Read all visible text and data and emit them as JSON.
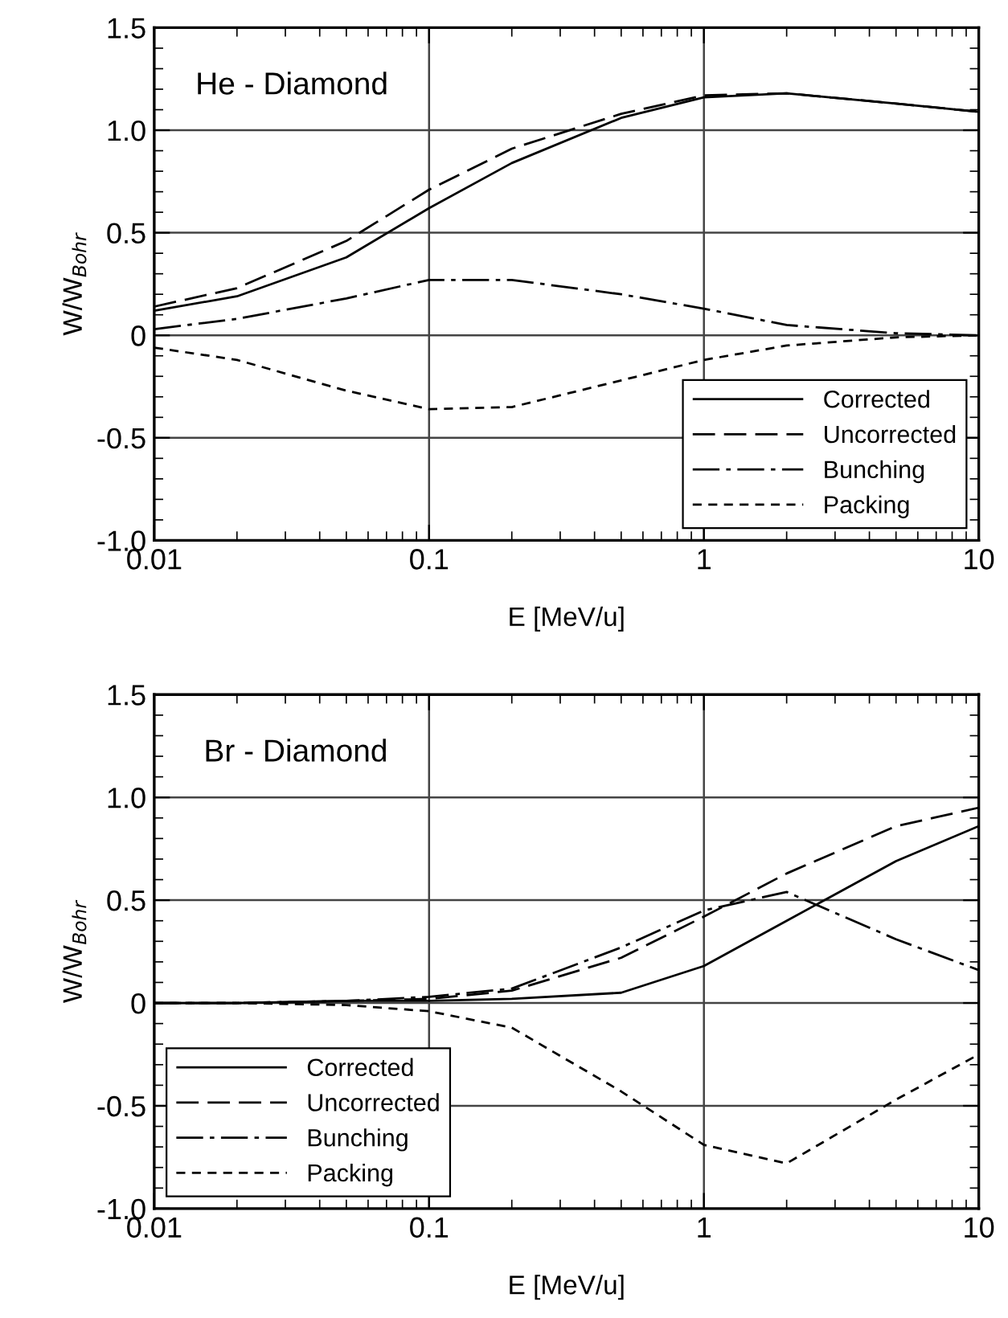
{
  "chart_data": [
    {
      "type": "line",
      "annotations": [
        "He - Diamond"
      ],
      "xlabel": "E [MeV/u]",
      "ylabel": "W/W$_{Bohr}$",
      "log": "x",
      "grid": true,
      "legend": "lower right",
      "x": [
        0.01,
        0.02,
        0.05,
        0.1,
        0.2,
        0.5,
        1,
        2,
        5,
        10
      ],
      "xlim": [
        0.01,
        10
      ],
      "xticks": [
        0.01,
        0.1,
        1,
        10
      ],
      "ylim": [
        -1.0,
        1.5
      ],
      "yticks": [
        {
          "value": -1.0,
          "label": "-1.0"
        },
        {
          "value": -0.5,
          "label": "-0.5"
        },
        0,
        0.5,
        {
          "value": 1.0,
          "label": "1.0"
        },
        1.5
      ],
      "series": [
        {
          "name": "Corrected",
          "color": "#000000",
          "line_style": "solid",
          "values": [
            0.12,
            0.19,
            0.38,
            0.62,
            0.84,
            1.06,
            1.16,
            1.18,
            1.13,
            1.09
          ]
        },
        {
          "name": "Uncorrected",
          "color": "#000000",
          "line_style": "dashed",
          "values": [
            0.14,
            0.23,
            0.46,
            0.71,
            0.91,
            1.08,
            1.17,
            1.18,
            1.13,
            1.09
          ]
        },
        {
          "name": "Bunching",
          "color": "#000000",
          "line_style": "dashdot",
          "values": [
            0.03,
            0.08,
            0.18,
            0.27,
            0.27,
            0.2,
            0.13,
            0.05,
            0.01,
            0.0
          ]
        },
        {
          "name": "Packing",
          "color": "#000000",
          "line_style": "dotted",
          "values": [
            -0.06,
            -0.12,
            -0.27,
            -0.36,
            -0.35,
            -0.22,
            -0.12,
            -0.05,
            -0.01,
            0.0
          ]
        }
      ]
    },
    {
      "type": "line",
      "annotations": [
        "Br - Diamond"
      ],
      "xlabel": "E [MeV/u]",
      "ylabel": "W/W$_{Bohr}$",
      "log": "x",
      "grid": true,
      "legend": "lower left",
      "x": [
        0.01,
        0.02,
        0.05,
        0.1,
        0.2,
        0.5,
        1,
        2,
        5,
        10
      ],
      "xlim": [
        0.01,
        10
      ],
      "xticks": [
        0.01,
        0.1,
        1,
        10
      ],
      "ylim": [
        -1.0,
        1.5
      ],
      "yticks": [
        {
          "value": -1.0,
          "label": "-1.0"
        },
        {
          "value": -0.5,
          "label": "-0.5"
        },
        0,
        0.5,
        {
          "value": 1.0,
          "label": "1.0"
        },
        1.5
      ],
      "series": [
        {
          "name": "Corrected",
          "color": "#000000",
          "line_style": "solid",
          "values": [
            0.0,
            0.0,
            0.01,
            0.01,
            0.02,
            0.05,
            0.18,
            0.4,
            0.69,
            0.86
          ]
        },
        {
          "name": "Uncorrected",
          "color": "#000000",
          "line_style": "dashed",
          "values": [
            0.0,
            0.0,
            0.01,
            0.02,
            0.06,
            0.22,
            0.42,
            0.63,
            0.86,
            0.95
          ]
        },
        {
          "name": "Bunching",
          "color": "#000000",
          "line_style": "dashdot",
          "values": [
            0.0,
            0.0,
            0.01,
            0.03,
            0.07,
            0.27,
            0.45,
            0.54,
            0.31,
            0.16
          ]
        },
        {
          "name": "Packing",
          "color": "#000000",
          "line_style": "dotted",
          "values": [
            0.0,
            0.0,
            -0.01,
            -0.04,
            -0.12,
            -0.43,
            -0.69,
            -0.78,
            -0.47,
            -0.25
          ]
        }
      ]
    }
  ]
}
